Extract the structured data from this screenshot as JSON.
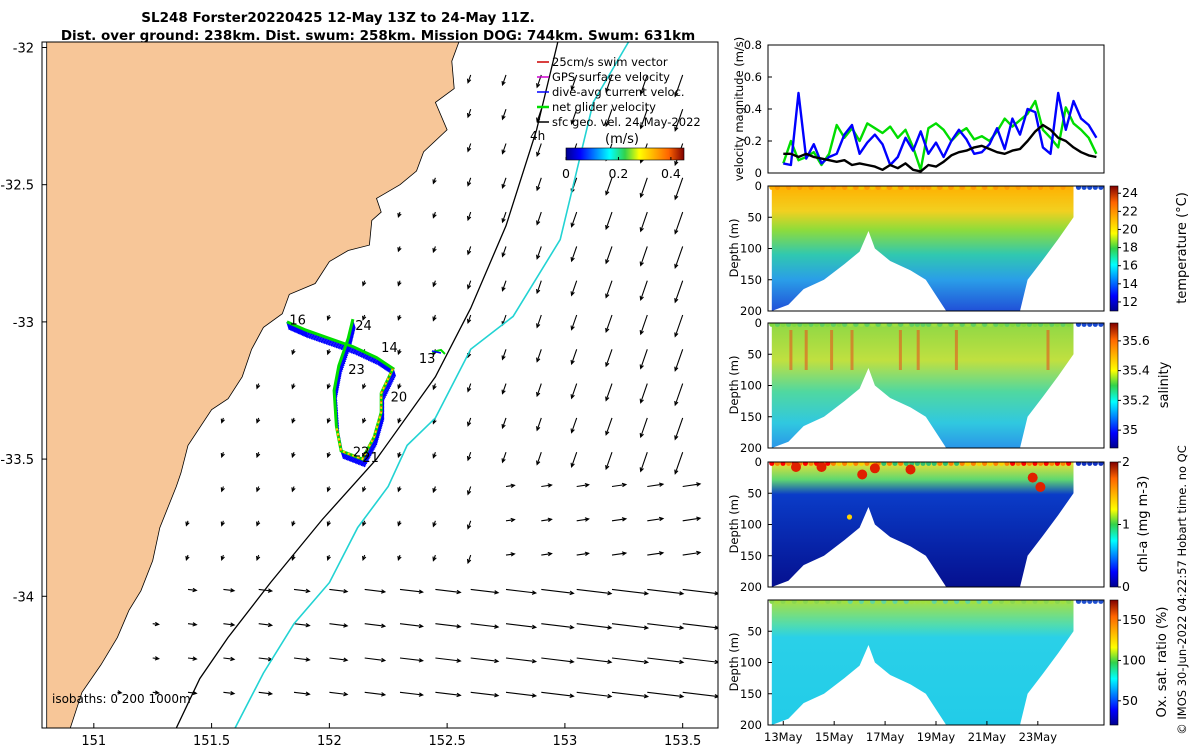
{
  "title": {
    "line1": "SL248 Forster20220425 12-May 13Z to 24-May 11Z.",
    "line2": "Dist. over ground: 238km. Dist. swum: 258km. Mission DOG: 744km. Swum: 631km"
  },
  "colors": {
    "land": "#f7c698",
    "swim": "#cc0000",
    "gps": "#cc00cc",
    "dive_avg": "#0000ff",
    "net_glider": "#00dd00",
    "sfc_geo": "#000000",
    "isobath_200": "#000000",
    "isobath_1000": "#22d3d3",
    "yellow": "#ffd700"
  },
  "legend": {
    "items": [
      {
        "label": "25cm/s swim vector",
        "color": "#cc0000"
      },
      {
        "label": "GPS surface velocity",
        "color": "#cc00cc"
      },
      {
        "label": "dive-avg current veloc.",
        "color": "#0000ff"
      },
      {
        "label": "net glider velocity",
        "color": "#00dd00"
      },
      {
        "label": "sfc geo. vel. 24-May-2022",
        "color": "#000000"
      }
    ],
    "four_h": "4h",
    "cbar_title": "(m/s)",
    "cbar_ticks": [
      "0",
      "0.2",
      "0.4"
    ],
    "cbar_tick_values": [
      0,
      0.2,
      0.4
    ],
    "cbar_range": [
      0,
      0.45
    ]
  },
  "isobaths_note": "isobaths: 0   200  1000m",
  "footer": "© IMOS 30-Jun-2022 04:22:57 Hobart time. no QC",
  "chart_data": [
    {
      "type": "map",
      "xlabel": "",
      "ylabel": "",
      "xlim": [
        150.78,
        153.65
      ],
      "ylim": [
        -34.48,
        -31.98
      ],
      "xticks": [
        151,
        151.5,
        152,
        152.5,
        153,
        153.5
      ],
      "xtick_labels": [
        "151",
        "151.5",
        "152",
        "152.5",
        "153",
        "153.5"
      ],
      "yticks": [
        -32,
        -32.5,
        -33,
        -33.5,
        -34
      ],
      "ytick_labels": [
        "-32",
        "-32.5",
        "-33",
        "-33.5",
        "-34"
      ],
      "coastline": [
        [
          150.8,
          -31.98
        ],
        [
          152.55,
          -31.98
        ],
        [
          152.52,
          -32.05
        ],
        [
          152.53,
          -32.15
        ],
        [
          152.45,
          -32.2
        ],
        [
          152.5,
          -32.3
        ],
        [
          152.4,
          -32.38
        ],
        [
          152.37,
          -32.45
        ],
        [
          152.3,
          -32.5
        ],
        [
          152.2,
          -32.55
        ],
        [
          152.22,
          -32.6
        ],
        [
          152.18,
          -32.63
        ],
        [
          152.17,
          -32.72
        ],
        [
          152.08,
          -32.74
        ],
        [
          152.0,
          -32.78
        ],
        [
          151.94,
          -32.86
        ],
        [
          151.83,
          -32.9
        ],
        [
          151.8,
          -32.97
        ],
        [
          151.72,
          -33.02
        ],
        [
          151.67,
          -33.1
        ],
        [
          151.63,
          -33.2
        ],
        [
          151.57,
          -33.28
        ],
        [
          151.5,
          -33.32
        ],
        [
          151.4,
          -33.45
        ],
        [
          151.37,
          -33.55
        ],
        [
          151.35,
          -33.6
        ],
        [
          151.28,
          -33.75
        ],
        [
          151.25,
          -33.87
        ],
        [
          151.2,
          -33.98
        ],
        [
          151.15,
          -34.05
        ],
        [
          151.1,
          -34.15
        ],
        [
          151.03,
          -34.25
        ],
        [
          150.95,
          -34.35
        ],
        [
          150.9,
          -34.48
        ],
        [
          150.8,
          -34.48
        ]
      ],
      "isobath_200": [
        [
          152.97,
          -31.98
        ],
        [
          152.88,
          -32.3
        ],
        [
          152.75,
          -32.65
        ],
        [
          152.6,
          -32.95
        ],
        [
          152.45,
          -33.2
        ],
        [
          152.2,
          -33.5
        ],
        [
          151.97,
          -33.72
        ],
        [
          151.75,
          -33.95
        ],
        [
          151.57,
          -34.15
        ],
        [
          151.45,
          -34.3
        ],
        [
          151.35,
          -34.48
        ]
      ],
      "isobath_1000": [
        [
          153.27,
          -31.98
        ],
        [
          153.12,
          -32.2
        ],
        [
          153.05,
          -32.45
        ],
        [
          152.98,
          -32.7
        ],
        [
          152.78,
          -32.98
        ],
        [
          152.6,
          -33.1
        ],
        [
          152.45,
          -33.35
        ],
        [
          152.33,
          -33.45
        ],
        [
          152.25,
          -33.6
        ],
        [
          152.12,
          -33.75
        ],
        [
          152.0,
          -33.95
        ],
        [
          151.85,
          -34.1
        ],
        [
          151.72,
          -34.28
        ],
        [
          151.6,
          -34.48
        ]
      ],
      "track_point_labels": [
        {
          "label": "16",
          "lon": 151.83,
          "lat": -33.01
        },
        {
          "label": "24",
          "lon": 152.11,
          "lat": -33.03
        },
        {
          "label": "14",
          "lon": 152.22,
          "lat": -33.11
        },
        {
          "label": "13",
          "lon": 152.38,
          "lat": -33.15
        },
        {
          "label": "23",
          "lon": 152.08,
          "lat": -33.19
        },
        {
          "label": "20",
          "lon": 152.26,
          "lat": -33.29
        },
        {
          "label": "22",
          "lon": 152.1,
          "lat": -33.49
        },
        {
          "label": "21",
          "lon": 152.14,
          "lat": -33.51
        }
      ],
      "track": [
        [
          151.82,
          -33.0
        ],
        [
          151.9,
          -33.03
        ],
        [
          152.0,
          -33.06
        ],
        [
          152.1,
          -33.09
        ],
        [
          152.2,
          -33.13
        ],
        [
          152.27,
          -33.17
        ],
        [
          152.22,
          -33.26
        ],
        [
          152.22,
          -33.33
        ],
        [
          152.19,
          -33.42
        ],
        [
          152.14,
          -33.5
        ],
        [
          152.05,
          -33.47
        ],
        [
          152.03,
          -33.38
        ],
        [
          152.02,
          -33.25
        ],
        [
          152.04,
          -33.16
        ],
        [
          152.08,
          -33.06
        ],
        [
          152.1,
          -32.99
        ]
      ],
      "sfc_geo_vectors_note": "grid of surface geostrophic velocity arrows, 24-May-2022"
    },
    {
      "type": "line",
      "ylabel": "velocity magnitude (m/s)",
      "ylim": [
        0,
        0.8
      ],
      "yticks": [
        0,
        0.2,
        0.4,
        0.6,
        0.8
      ],
      "ytick_labels": [
        "0",
        "0.2",
        "0.4",
        "0.6",
        "0.8"
      ],
      "x_days": [
        0,
        0.3,
        0.6,
        0.9,
        1.2,
        1.5,
        1.8,
        2.1,
        2.4,
        2.7,
        3.0,
        3.3,
        3.6,
        3.9,
        4.2,
        4.5,
        4.8,
        5.1,
        5.4,
        5.7,
        6.0,
        6.3,
        6.6,
        6.9,
        7.2,
        7.5,
        7.8,
        8.1,
        8.4,
        8.7,
        9.0,
        9.3,
        9.6,
        9.9,
        10.2,
        10.5,
        10.8,
        11.1,
        11.4,
        11.7,
        12.0,
        12.3
      ],
      "series": [
        {
          "name": "net glider velocity",
          "color": "#00dd00",
          "values": [
            0.06,
            0.2,
            0.08,
            0.1,
            0.13,
            0.05,
            0.12,
            0.3,
            0.22,
            0.28,
            0.2,
            0.31,
            0.28,
            0.25,
            0.29,
            0.22,
            0.27,
            0.16,
            0.02,
            0.28,
            0.31,
            0.27,
            0.2,
            0.25,
            0.28,
            0.21,
            0.23,
            0.2,
            0.26,
            0.34,
            0.29,
            0.33,
            0.37,
            0.45,
            0.27,
            0.22,
            0.16,
            0.41,
            0.31,
            0.27,
            0.22,
            0.12
          ]
        },
        {
          "name": "dive-avg current veloc.",
          "color": "#0000ff",
          "values": [
            0.06,
            0.05,
            0.5,
            0.09,
            0.18,
            0.06,
            0.1,
            0.12,
            0.24,
            0.3,
            0.12,
            0.19,
            0.24,
            0.18,
            0.05,
            0.1,
            0.22,
            0.14,
            0.26,
            0.12,
            0.19,
            0.1,
            0.2,
            0.27,
            0.21,
            0.12,
            0.13,
            0.18,
            0.28,
            0.15,
            0.34,
            0.24,
            0.4,
            0.38,
            0.16,
            0.12,
            0.5,
            0.27,
            0.45,
            0.34,
            0.3,
            0.22
          ]
        },
        {
          "name": "sfc geo. vel.",
          "color": "#000000",
          "values": [
            0.12,
            0.12,
            0.1,
            0.12,
            0.1,
            0.09,
            0.08,
            0.07,
            0.08,
            0.05,
            0.06,
            0.05,
            0.04,
            0.02,
            0.05,
            0.03,
            0.06,
            0.02,
            0.01,
            0.05,
            0.04,
            0.07,
            0.11,
            0.13,
            0.14,
            0.16,
            0.17,
            0.15,
            0.13,
            0.12,
            0.14,
            0.15,
            0.2,
            0.26,
            0.3,
            0.27,
            0.22,
            0.2,
            0.16,
            0.13,
            0.11,
            0.1
          ]
        }
      ]
    },
    {
      "type": "heatmap",
      "name": "temperature",
      "ylabel": "Depth (m)",
      "colorbar_label": "temperature (°C)",
      "ylim": [
        200,
        0
      ],
      "yticks": [
        0,
        50,
        100,
        150,
        200
      ],
      "ytick_labels": [
        "0",
        "50",
        "100",
        "150",
        "200"
      ],
      "colorbar_range": [
        11,
        24.8
      ],
      "colorbar_ticks": [
        12,
        14,
        16,
        18,
        20,
        22,
        24
      ],
      "colorbar_tick_labels": [
        "12",
        "14",
        "16",
        "18",
        "20",
        "22",
        "24"
      ]
    },
    {
      "type": "heatmap",
      "name": "salinity",
      "ylabel": "Depth (m)",
      "colorbar_label": "salinity",
      "ylim": [
        200,
        0
      ],
      "yticks": [
        0,
        50,
        100,
        150,
        200
      ],
      "ytick_labels": [
        "0",
        "50",
        "100",
        "150",
        "200"
      ],
      "colorbar_range": [
        34.88,
        35.72
      ],
      "colorbar_ticks": [
        35,
        35.2,
        35.4,
        35.6
      ],
      "colorbar_tick_labels": [
        "35",
        "35.2",
        "35.4",
        "35.6"
      ]
    },
    {
      "type": "heatmap",
      "name": "chl-a",
      "ylabel": "Depth (m)",
      "colorbar_label": "chl-a (mg m-3)",
      "ylim": [
        200,
        0
      ],
      "yticks": [
        0,
        50,
        100,
        150,
        200
      ],
      "ytick_labels": [
        "0",
        "50",
        "100",
        "150",
        "200"
      ],
      "colorbar_range": [
        0,
        2
      ],
      "colorbar_ticks": [
        0,
        1,
        2
      ],
      "colorbar_tick_labels": [
        "0",
        "1",
        "2"
      ]
    },
    {
      "type": "heatmap",
      "name": "oxygen saturation",
      "ylabel": "Depth (m)",
      "colorbar_label": "Ox. sat. ratio (%)",
      "ylim": [
        200,
        0
      ],
      "yticks": [
        50,
        100,
        150,
        200
      ],
      "ytick_labels": [
        "50",
        "100",
        "150",
        "200"
      ],
      "colorbar_range": [
        20,
        175
      ],
      "colorbar_ticks": [
        50,
        100,
        150
      ],
      "colorbar_tick_labels": [
        "50",
        "100",
        "150"
      ],
      "xlim_days": [
        -0.6,
        12.6
      ],
      "xticks_days": [
        0,
        2,
        4,
        6,
        8,
        10
      ],
      "xtick_labels": [
        "13May",
        "15May",
        "17May",
        "19May",
        "21May",
        "23May"
      ]
    }
  ]
}
